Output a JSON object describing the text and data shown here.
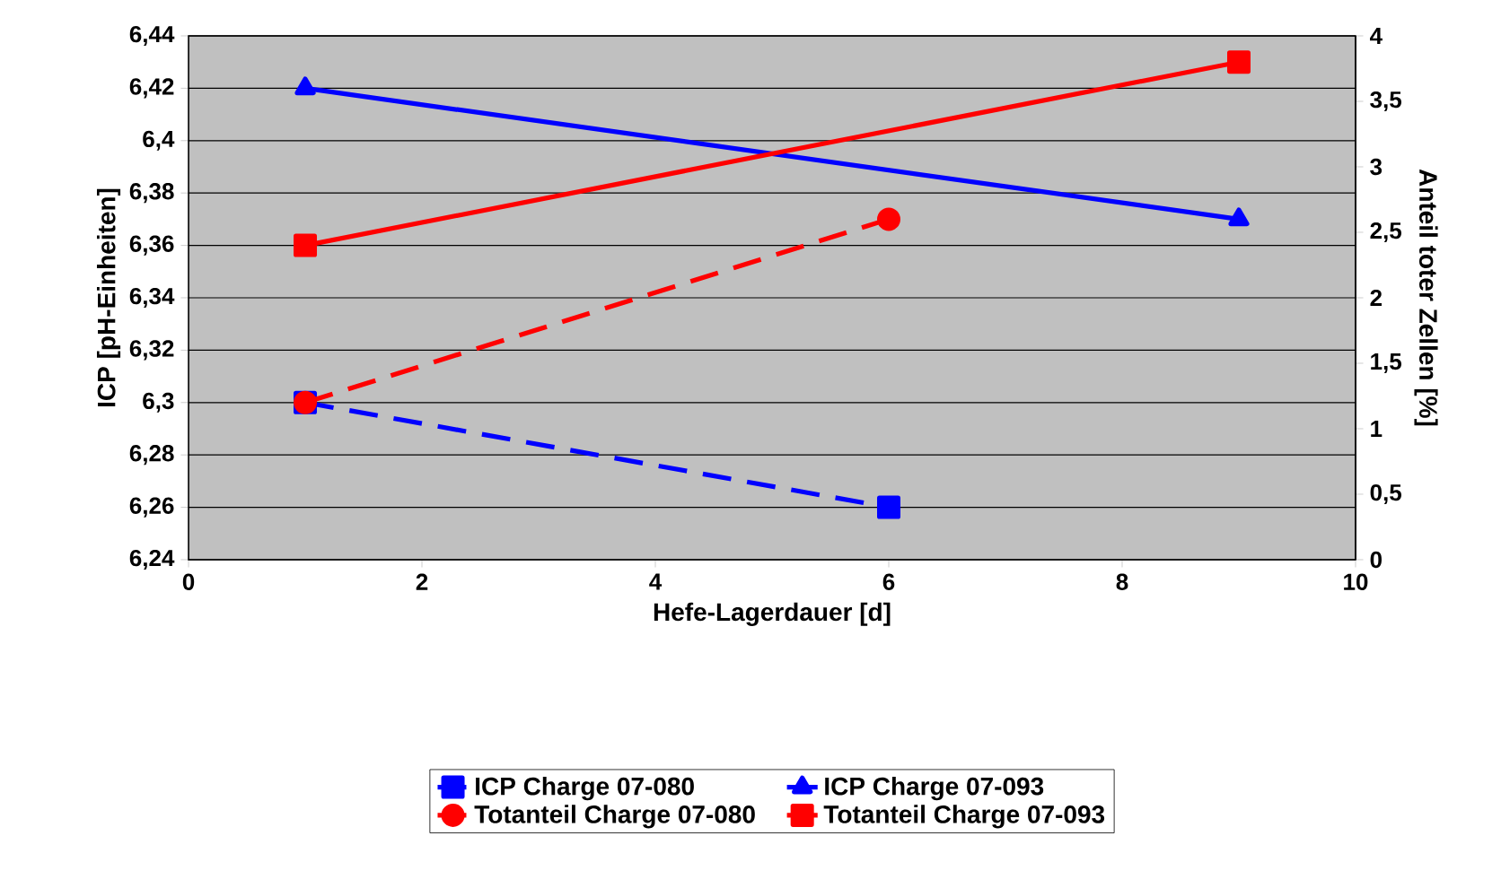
{
  "chart_data": {
    "type": "line",
    "xlabel": "Hefe-Lagerdauer [d]",
    "ylabel": "ICP [pH-Einheiten]",
    "y2label": "Anteil toter Zellen [%]",
    "xlim": [
      0,
      10
    ],
    "xticks": [
      0,
      2,
      4,
      6,
      8,
      10
    ],
    "ylim": [
      6.24,
      6.44
    ],
    "yticks": [
      {
        "value": 6.24,
        "label": "6,24"
      },
      {
        "value": 6.26,
        "label": "6,26"
      },
      {
        "value": 6.28,
        "label": "6,28"
      },
      {
        "value": 6.3,
        "label": "6,3"
      },
      {
        "value": 6.32,
        "label": "6,32"
      },
      {
        "value": 6.34,
        "label": "6,34"
      },
      {
        "value": 6.36,
        "label": "6,36"
      },
      {
        "value": 6.38,
        "label": "6,38"
      },
      {
        "value": 6.4,
        "label": "6,4"
      },
      {
        "value": 6.42,
        "label": "6,42"
      },
      {
        "value": 6.44,
        "label": "6,44"
      }
    ],
    "y2lim": [
      0,
      4
    ],
    "y2ticks": [
      0,
      {
        "value": 0.5,
        "label": "0,5"
      },
      1,
      {
        "value": 1.5,
        "label": "1,5"
      },
      2,
      {
        "value": 2.5,
        "label": "2,5"
      },
      3,
      {
        "value": 3.5,
        "label": "3,5"
      },
      4
    ],
    "grid": "y",
    "legend": "bottom",
    "series": [
      {
        "name": "ICP Charge 07-080",
        "color": "#0000ff",
        "marker": "square",
        "line_style": "dashed",
        "x": [
          1,
          6
        ],
        "values": [
          6.3,
          6.26
        ]
      },
      {
        "name": "ICP Charge 07-093",
        "color": "#0000ff",
        "marker": "triangle",
        "line_style": "solid",
        "x": [
          1,
          9
        ],
        "values": [
          6.42,
          6.37
        ]
      },
      {
        "name": "Totanteil Charge 07-080",
        "color": "#ff0000",
        "marker": "circle",
        "line_style": "dashed",
        "axis": "y2",
        "x": [
          1,
          6
        ],
        "values": [
          1.2,
          2.6
        ]
      },
      {
        "name": "Totanteil Charge 07-093",
        "color": "#ff0000",
        "marker": "square",
        "line_style": "solid",
        "axis": "y2",
        "x": [
          1,
          9
        ],
        "values": [
          2.4,
          3.8
        ]
      }
    ]
  }
}
